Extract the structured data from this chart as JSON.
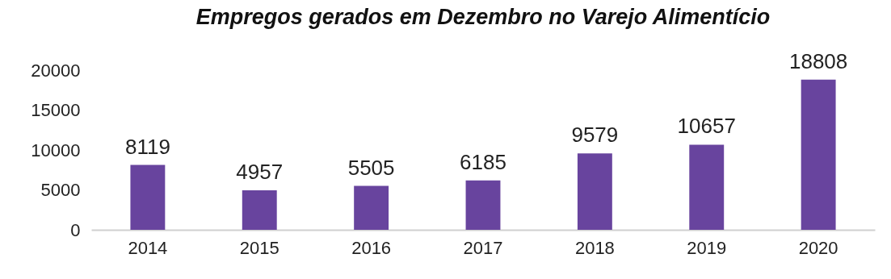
{
  "chart_data": {
    "type": "bar",
    "title": "Empregos gerados em Dezembro no Varejo Alimentício",
    "categories": [
      "2014",
      "2015",
      "2016",
      "2017",
      "2018",
      "2019",
      "2020"
    ],
    "values": [
      8119,
      4957,
      5505,
      6185,
      9579,
      10657,
      18808
    ],
    "color": "#68449e",
    "ylim": [
      0,
      20000
    ],
    "yticks": [
      0,
      5000,
      10000,
      15000,
      20000
    ],
    "grid": false,
    "data_labels": true
  }
}
